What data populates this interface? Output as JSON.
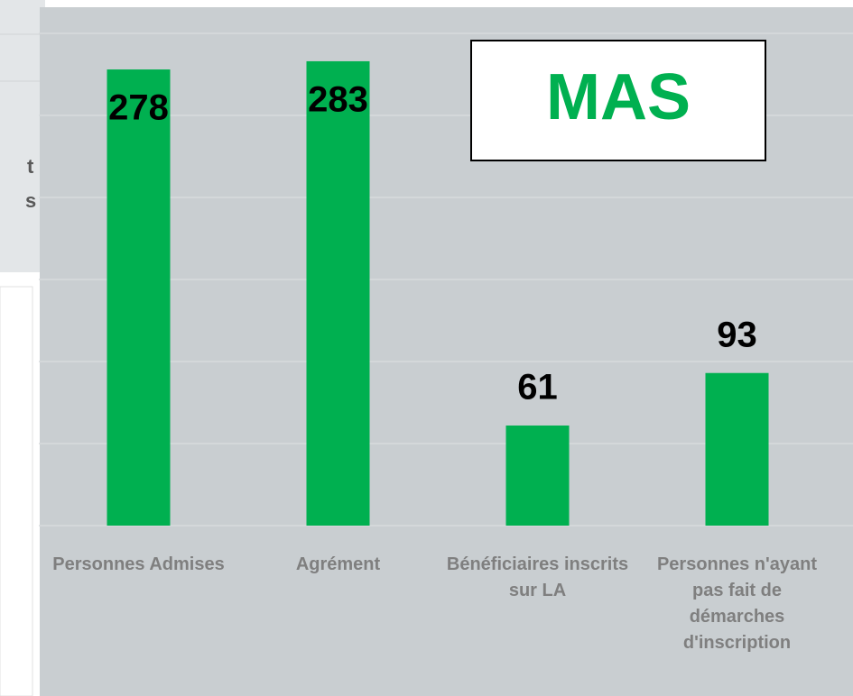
{
  "background_text": [
    "t",
    "s"
  ],
  "chart_data": {
    "type": "bar",
    "annotation": "MAS",
    "categories": [
      "Personnes Admises",
      "Agrément",
      "Bénéficiaires inscrits sur LA",
      "Personnes n'ayant pas fait de démarches d'inscription"
    ],
    "values": [
      278,
      283,
      61,
      93
    ],
    "color": "#00b050",
    "ylim": [
      0,
      300
    ],
    "yticks": [
      0,
      50,
      100,
      150,
      200,
      250,
      300
    ],
    "grid": true
  }
}
